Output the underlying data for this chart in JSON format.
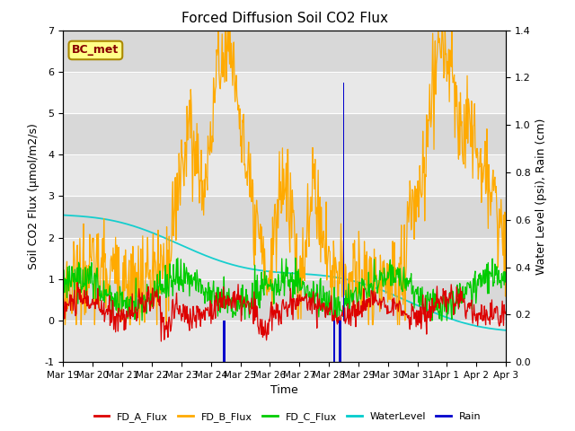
{
  "title": "Forced Diffusion Soil CO2 Flux",
  "ylabel_left": "Soil CO2 Flux (μmol/m2/s)",
  "ylabel_right": "Water Level (psi), Rain (cm)",
  "xlabel": "Time",
  "ylim_left": [
    -1.0,
    7.0
  ],
  "ylim_right": [
    0.0,
    1.4
  ],
  "yticks_left": [
    -1.0,
    0.0,
    1.0,
    2.0,
    3.0,
    4.0,
    5.0,
    6.0,
    7.0
  ],
  "yticks_right": [
    0.0,
    0.2,
    0.4,
    0.6,
    0.8,
    1.0,
    1.2,
    1.4
  ],
  "xtick_labels": [
    "Mar 19",
    "Mar 20",
    "Mar 21",
    "Mar 22",
    "Mar 23",
    "Mar 24",
    "Mar 25",
    "Mar 26",
    "Mar 27",
    "Mar 28",
    "Mar 29",
    "Mar 30",
    "Mar 31",
    "Apr 1",
    "Apr 2",
    "Apr 3"
  ],
  "colors": {
    "FD_A_Flux": "#dd0000",
    "FD_B_Flux": "#ffaa00",
    "FD_C_Flux": "#00cc00",
    "WaterLevel": "#00cccc",
    "Rain": "#0000cc"
  },
  "annotation_label": "BC_met",
  "band_colors": [
    "#e8e8e8",
    "#d8d8d8"
  ],
  "fig_bg": "#ffffff",
  "plot_bg": "#e8e8e8"
}
